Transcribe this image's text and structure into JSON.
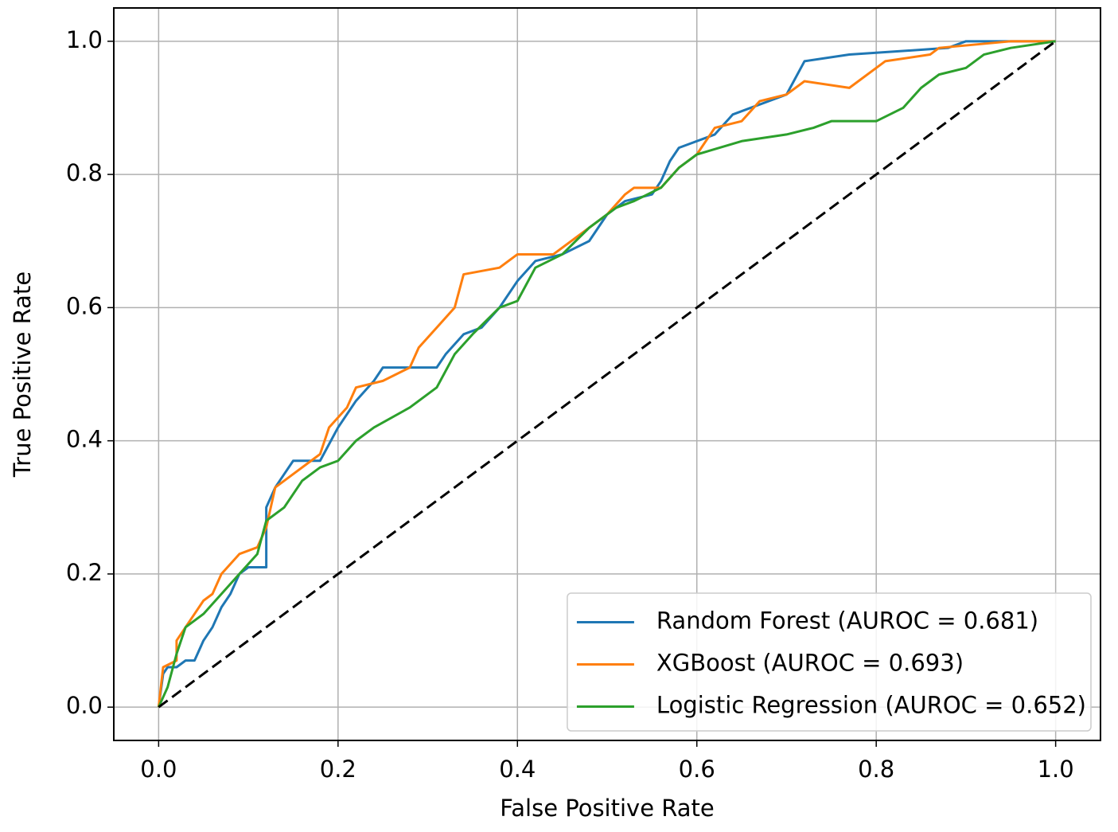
{
  "chart_data": {
    "type": "line",
    "xlabel": "False Positive Rate",
    "ylabel": "True Positive Rate",
    "xlim": [
      -0.05,
      1.05
    ],
    "ylim": [
      -0.05,
      1.05
    ],
    "xticks": [
      {
        "value": 0,
        "label": "0.0"
      },
      {
        "value": 0.2,
        "label": "0.2"
      },
      {
        "value": 0.4,
        "label": "0.4"
      },
      {
        "value": 0.6,
        "label": "0.6"
      },
      {
        "value": 0.8,
        "label": "0.8"
      },
      {
        "value": 1,
        "label": "1.0"
      }
    ],
    "yticks": [
      {
        "value": 0,
        "label": "0.0"
      },
      {
        "value": 0.2,
        "label": "0.2"
      },
      {
        "value": 0.4,
        "label": "0.4"
      },
      {
        "value": 0.6,
        "label": "0.6"
      },
      {
        "value": 0.8,
        "label": "0.8"
      },
      {
        "value": 1,
        "label": "1.0"
      }
    ],
    "grid": true,
    "legend": "lower right",
    "series": [
      {
        "name": "Random Forest (AUROC = 0.681)",
        "color": "#1f77b4",
        "x": [
          0,
          0.005,
          0.01,
          0.02,
          0.03,
          0.04,
          0.05,
          0.06,
          0.07,
          0.08,
          0.09,
          0.1,
          0.12,
          0.12,
          0.13,
          0.14,
          0.15,
          0.18,
          0.2,
          0.22,
          0.24,
          0.25,
          0.31,
          0.32,
          0.34,
          0.36,
          0.38,
          0.4,
          0.42,
          0.45,
          0.48,
          0.5,
          0.52,
          0.55,
          0.56,
          0.57,
          0.58,
          0.62,
          0.64,
          0.66,
          0.7,
          0.72,
          0.77,
          0.88,
          0.9,
          1
        ],
        "values": [
          0,
          0.05,
          0.06,
          0.06,
          0.07,
          0.07,
          0.1,
          0.12,
          0.15,
          0.17,
          0.2,
          0.21,
          0.21,
          0.3,
          0.33,
          0.35,
          0.37,
          0.37,
          0.42,
          0.46,
          0.49,
          0.51,
          0.51,
          0.53,
          0.56,
          0.57,
          0.6,
          0.64,
          0.67,
          0.68,
          0.7,
          0.74,
          0.76,
          0.77,
          0.79,
          0.82,
          0.84,
          0.86,
          0.89,
          0.9,
          0.92,
          0.97,
          0.98,
          0.99,
          1,
          1
        ]
      },
      {
        "name": "XGBoost (AUROC = 0.693)",
        "color": "#ff7f0e",
        "x": [
          0,
          0.005,
          0.02,
          0.02,
          0.03,
          0.05,
          0.06,
          0.07,
          0.09,
          0.11,
          0.12,
          0.13,
          0.15,
          0.18,
          0.19,
          0.21,
          0.22,
          0.25,
          0.28,
          0.29,
          0.31,
          0.33,
          0.34,
          0.38,
          0.4,
          0.44,
          0.47,
          0.5,
          0.52,
          0.53,
          0.56,
          0.58,
          0.6,
          0.62,
          0.65,
          0.67,
          0.7,
          0.72,
          0.77,
          0.81,
          0.86,
          0.87,
          0.95,
          1
        ],
        "values": [
          0,
          0.06,
          0.07,
          0.1,
          0.12,
          0.16,
          0.17,
          0.2,
          0.23,
          0.24,
          0.27,
          0.33,
          0.35,
          0.38,
          0.42,
          0.45,
          0.48,
          0.49,
          0.51,
          0.54,
          0.57,
          0.6,
          0.65,
          0.66,
          0.68,
          0.68,
          0.71,
          0.74,
          0.77,
          0.78,
          0.78,
          0.81,
          0.83,
          0.87,
          0.88,
          0.91,
          0.92,
          0.94,
          0.93,
          0.97,
          0.98,
          0.99,
          1,
          1
        ]
      },
      {
        "name": "Logistic Regression (AUROC = 0.652)",
        "color": "#2ca02c",
        "x": [
          0,
          0.01,
          0.02,
          0.03,
          0.05,
          0.07,
          0.09,
          0.11,
          0.12,
          0.14,
          0.16,
          0.18,
          0.2,
          0.22,
          0.24,
          0.28,
          0.31,
          0.33,
          0.35,
          0.38,
          0.4,
          0.42,
          0.45,
          0.48,
          0.51,
          0.53,
          0.56,
          0.58,
          0.6,
          0.65,
          0.7,
          0.73,
          0.75,
          0.8,
          0.83,
          0.85,
          0.87,
          0.9,
          0.92,
          0.95,
          1
        ],
        "values": [
          0,
          0.03,
          0.08,
          0.12,
          0.14,
          0.17,
          0.2,
          0.23,
          0.28,
          0.3,
          0.34,
          0.36,
          0.37,
          0.4,
          0.42,
          0.45,
          0.48,
          0.53,
          0.56,
          0.6,
          0.61,
          0.66,
          0.68,
          0.72,
          0.75,
          0.76,
          0.78,
          0.81,
          0.83,
          0.85,
          0.86,
          0.87,
          0.88,
          0.88,
          0.9,
          0.93,
          0.95,
          0.96,
          0.98,
          0.99,
          1
        ]
      },
      {
        "color": "#000000",
        "dash": true,
        "x": [
          0,
          1
        ],
        "values": [
          0,
          1
        ]
      }
    ]
  }
}
